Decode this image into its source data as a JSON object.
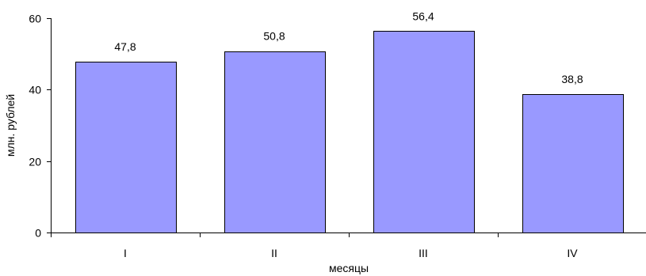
{
  "chart_data": {
    "type": "bar",
    "title": "",
    "xlabel": "месяцы",
    "ylabel": "млн. рублей",
    "categories": [
      "I",
      "II",
      "III",
      "IV"
    ],
    "values": [
      47.8,
      50.8,
      56.4,
      38.8
    ],
    "value_labels": [
      "47,8",
      "50,8",
      "56,4",
      "38,8"
    ],
    "ylim": [
      0,
      60
    ],
    "yticks": [
      0,
      20,
      40,
      60
    ],
    "grid": false,
    "legend": "none",
    "bar_color": "#9999ff",
    "bar_edge_color": "#000000"
  }
}
